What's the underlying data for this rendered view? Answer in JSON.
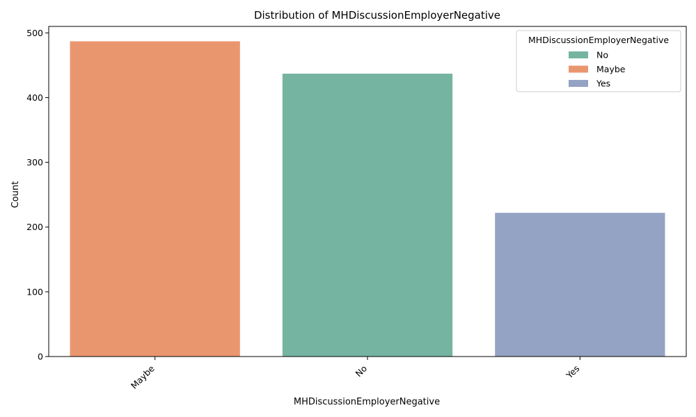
{
  "chart_data": {
    "type": "bar",
    "title": "Distribution of MHDiscussionEmployerNegative",
    "xlabel": "MHDiscussionEmployerNegative",
    "ylabel": "Count",
    "categories": [
      "Maybe",
      "No",
      "Yes"
    ],
    "values": [
      487,
      437,
      222
    ],
    "colors": [
      "#e9966f",
      "#74b4a0",
      "#94a2c3"
    ],
    "ylim": [
      0,
      510
    ],
    "yticks": [
      0,
      100,
      200,
      300,
      400,
      500
    ],
    "grid": false,
    "legend": {
      "title": "MHDiscussionEmployerNegative",
      "placement": "top-right",
      "entries": [
        {
          "label": "No",
          "color": "#74b4a0"
        },
        {
          "label": "Maybe",
          "color": "#e9966f"
        },
        {
          "label": "Yes",
          "color": "#94a2c3"
        }
      ]
    }
  }
}
